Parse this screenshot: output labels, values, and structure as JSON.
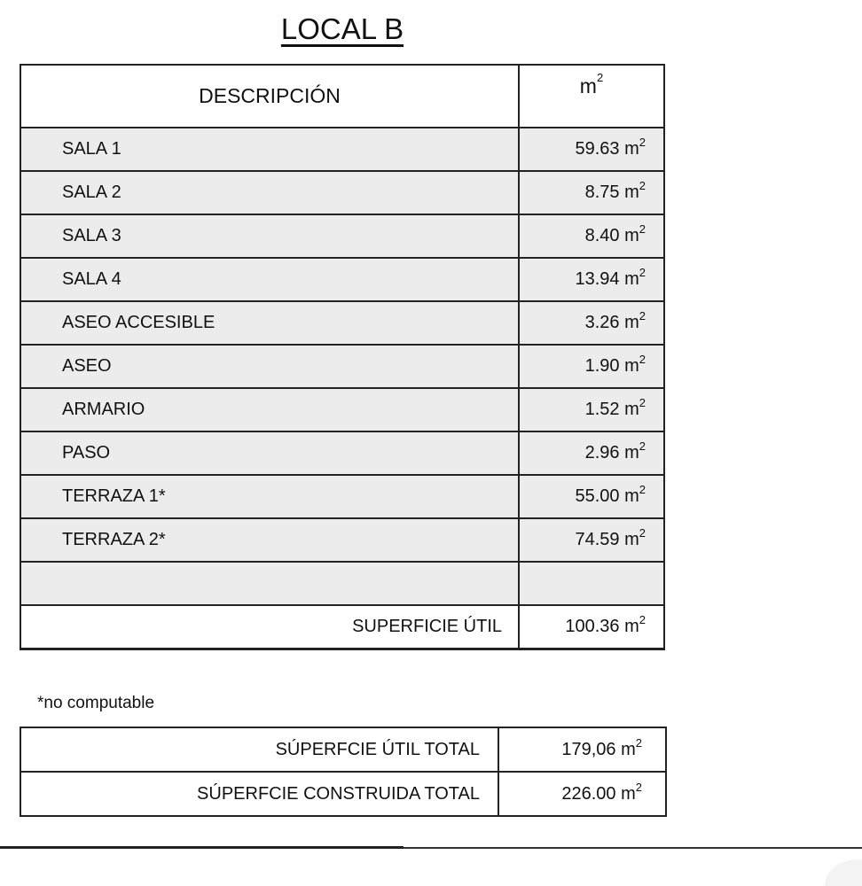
{
  "title": "LOCAL B",
  "table": {
    "header": {
      "description": "DESCRIPCIÓN",
      "unit": "m",
      "unit_sup": "2"
    },
    "rows": [
      {
        "label": "SALA 1",
        "value": "59.63 m",
        "sup": "2"
      },
      {
        "label": "SALA 2",
        "value": "8.75 m",
        "sup": "2"
      },
      {
        "label": "SALA 3",
        "value": "8.40 m",
        "sup": "2"
      },
      {
        "label": "SALA 4",
        "value": "13.94 m",
        "sup": "2"
      },
      {
        "label": "ASEO ACCESIBLE",
        "value": "3.26 m",
        "sup": "2"
      },
      {
        "label": "ASEO",
        "value": "1.90 m",
        "sup": "2"
      },
      {
        "label": "ARMARIO",
        "value": "1.52 m",
        "sup": "2"
      },
      {
        "label": "PASO",
        "value": "2.96 m",
        "sup": "2"
      },
      {
        "label": "TERRAZA 1*",
        "value": "55.00 m",
        "sup": "2"
      },
      {
        "label": "TERRAZA 2*",
        "value": "74.59 m",
        "sup": "2"
      },
      {
        "label": "",
        "value": "",
        "sup": ""
      }
    ],
    "total": {
      "label": "SUPERFICIE ÚTIL",
      "value": "100.36 m",
      "sup": "2"
    }
  },
  "note": "*no computable",
  "totals": [
    {
      "label": "SÚPERFCIE ÚTIL TOTAL",
      "value": "179,06 m",
      "sup": "2"
    },
    {
      "label": "SÚPERFCIE CONSTRUIDA TOTAL",
      "value": "226.00 m",
      "sup": "2"
    }
  ]
}
